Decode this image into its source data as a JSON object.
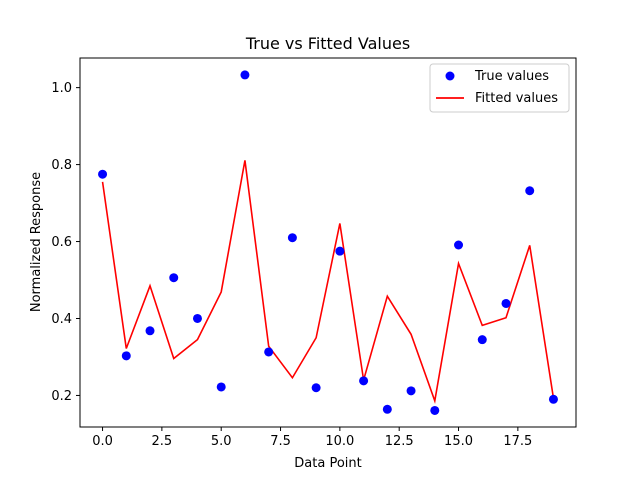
{
  "chart_data": {
    "type": "scatter",
    "title": "True vs Fitted Values",
    "xlabel": "Data Point",
    "ylabel": "Normalized Response",
    "xlim": [
      -0.95,
      19.95
    ],
    "ylim": [
      0.118,
      1.077
    ],
    "xticks": [
      0.0,
      2.5,
      5.0,
      7.5,
      10.0,
      12.5,
      15.0,
      17.5
    ],
    "xtick_labels": [
      "0.0",
      "2.5",
      "5.0",
      "7.5",
      "10.0",
      "12.5",
      "15.0",
      "17.5"
    ],
    "yticks": [
      0.2,
      0.4,
      0.6,
      0.8,
      1.0
    ],
    "ytick_labels": [
      "0.2",
      "0.4",
      "0.6",
      "0.8",
      "1.0"
    ],
    "grid": false,
    "legend_position": "top-right",
    "x": [
      0,
      1,
      2,
      3,
      4,
      5,
      6,
      7,
      8,
      9,
      10,
      11,
      12,
      13,
      14,
      15,
      16,
      17,
      18,
      19
    ],
    "series": [
      {
        "name": "True values",
        "kind": "scatter",
        "color": "#0000ff",
        "values": [
          0.775,
          0.303,
          0.368,
          0.506,
          0.4,
          0.222,
          1.033,
          0.313,
          0.61,
          0.22,
          0.575,
          0.238,
          0.164,
          0.212,
          0.161,
          0.591,
          0.345,
          0.439,
          0.732,
          0.19
        ]
      },
      {
        "name": "Fitted values",
        "kind": "line",
        "color": "#ff0000",
        "values": [
          0.755,
          0.322,
          0.485,
          0.296,
          0.345,
          0.469,
          0.811,
          0.328,
          0.246,
          0.35,
          0.647,
          0.24,
          0.458,
          0.359,
          0.186,
          0.543,
          0.382,
          0.402,
          0.59,
          0.193
        ]
      }
    ]
  }
}
